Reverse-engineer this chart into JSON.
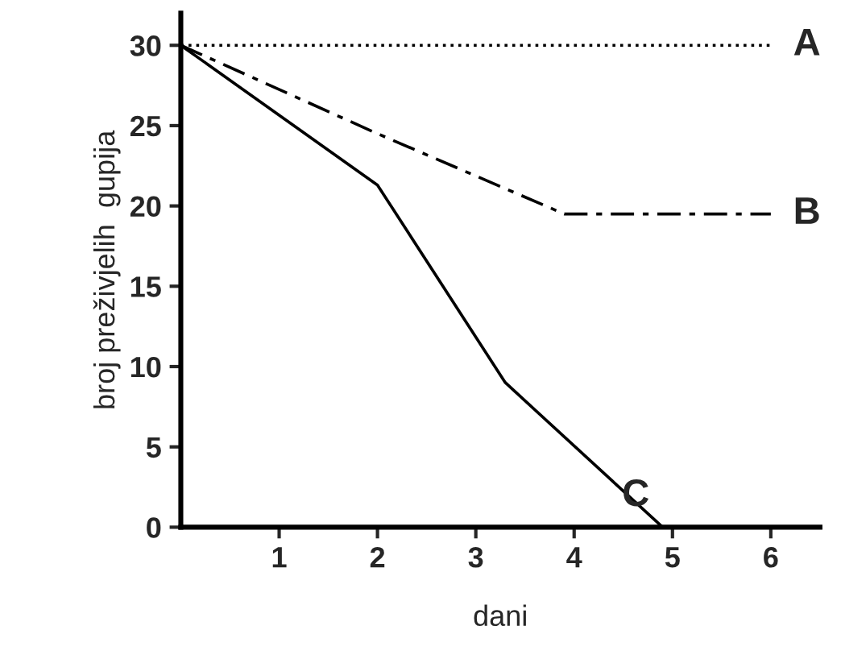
{
  "chart_data": {
    "type": "line",
    "xlabel": "dani",
    "ylabel": "broj preživjelih  gupija",
    "xlim": [
      0,
      6.5
    ],
    "ylim": [
      0,
      32
    ],
    "xticks": [
      1,
      2,
      3,
      4,
      5,
      6
    ],
    "yticks": [
      0,
      5,
      10,
      15,
      20,
      25,
      30
    ],
    "grid": false,
    "legend": false,
    "marker": "none",
    "series": [
      {
        "name": "A",
        "color": "#000000",
        "line_style": "dotted",
        "x": [
          0,
          6
        ],
        "values": [
          30,
          30
        ]
      },
      {
        "name": "B",
        "color": "#000000",
        "line_style": "dashdot",
        "x": [
          0,
          2,
          3.9,
          6
        ],
        "values": [
          30,
          24.5,
          19.5,
          19.5
        ]
      },
      {
        "name": "C",
        "color": "#000000",
        "line_style": "solid",
        "x": [
          0,
          2,
          3.3,
          4.9
        ],
        "values": [
          30,
          21.3,
          9,
          0
        ]
      }
    ]
  }
}
